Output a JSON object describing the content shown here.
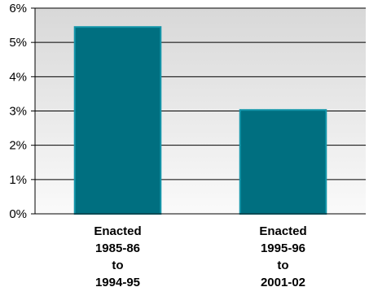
{
  "chart_data": {
    "type": "bar",
    "categories": [
      [
        "Enacted",
        "1985-86",
        "to",
        "1994-95"
      ],
      [
        "Enacted",
        "1995-96",
        "to",
        "2001-02"
      ]
    ],
    "values": [
      5.45,
      3.03
    ],
    "ylim": [
      0,
      6
    ],
    "yticks": [
      0,
      1,
      2,
      3,
      4,
      5,
      6
    ],
    "ytick_labels": [
      "0%",
      "1%",
      "2%",
      "3%",
      "4%",
      "5%",
      "6%"
    ],
    "grid": true,
    "bar_color": "#006F80",
    "bar_edge_color": "#1496AA",
    "plot_gradient_top": "#D8D8D8",
    "plot_gradient_bottom": "#FAFAFA"
  }
}
